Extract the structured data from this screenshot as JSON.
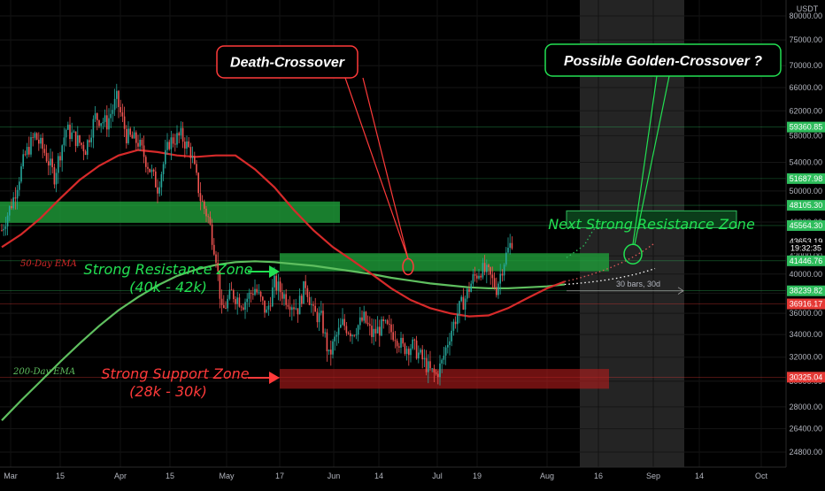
{
  "chart_data": {
    "type": "candlestick",
    "currency": "USDT",
    "x_ticks": [
      "Mar",
      "15",
      "Apr",
      "15",
      "May",
      "17",
      "Jun",
      "14",
      "Jul",
      "19",
      "Aug",
      "16",
      "Sep",
      "14",
      "Oct"
    ],
    "y_ticks": [
      "80000.00",
      "75000.00",
      "70000.00",
      "66000.00",
      "62000.00",
      "58000.00",
      "54000.00",
      "50000.00",
      "46000.00",
      "42000.00",
      "40000.00",
      "38000.00",
      "36000.00",
      "34000.00",
      "32000.00",
      "30000.00",
      "28000.00",
      "26400.00",
      "24800.00"
    ],
    "price_tags": [
      {
        "label": "59360.85",
        "value": 59360.85,
        "color": "#2ebd5c",
        "fill": true
      },
      {
        "label": "51687.98",
        "value": 51687.98,
        "color": "#2ebd5c",
        "fill": true
      },
      {
        "label": "48105.30",
        "value": 48105.3,
        "color": "#2ebd5c",
        "fill": true
      },
      {
        "label": "45564.30",
        "value": 45564.3,
        "color": "#2ebd5c",
        "fill": true
      },
      {
        "label": "43653.19",
        "value": 43653.19,
        "color": "#ffffff",
        "fill": false
      },
      {
        "label": "19:32:35",
        "value": 42900,
        "color": "#ffffff",
        "fill": false
      },
      {
        "label": "41446.76",
        "value": 41446.76,
        "color": "#2ebd5c",
        "fill": true
      },
      {
        "label": "38239.82",
        "value": 38239.82,
        "color": "#2ebd5c",
        "fill": true
      },
      {
        "label": "36916.17",
        "value": 36916.17,
        "color": "#e53935",
        "fill": true
      },
      {
        "label": "30325.04",
        "value": 30325.04,
        "color": "#e53935",
        "fill": true
      }
    ],
    "ema50": {
      "label": "50-Day EMA",
      "color": "#d62a2a",
      "points": [
        [
          0,
          43000
        ],
        [
          10,
          44500
        ],
        [
          20,
          46500
        ],
        [
          30,
          49000
        ],
        [
          40,
          51500
        ],
        [
          50,
          53500
        ],
        [
          60,
          55000
        ],
        [
          70,
          55800
        ],
        [
          80,
          55500
        ],
        [
          90,
          55000
        ],
        [
          100,
          54800
        ],
        [
          110,
          55000
        ],
        [
          120,
          55000
        ],
        [
          130,
          53000
        ],
        [
          140,
          50500
        ],
        [
          150,
          47500
        ],
        [
          160,
          45000
        ],
        [
          170,
          43000
        ],
        [
          180,
          41500
        ],
        [
          190,
          40000
        ],
        [
          200,
          38500
        ],
        [
          210,
          37300
        ],
        [
          220,
          36500
        ],
        [
          230,
          36000
        ],
        [
          240,
          35700
        ],
        [
          250,
          35800
        ],
        [
          260,
          36500
        ],
        [
          270,
          37500
        ],
        [
          280,
          38500
        ],
        [
          289,
          39200
        ]
      ]
    },
    "ema200": {
      "label": "200-Day EMA",
      "color": "#5fbf5f",
      "points": [
        [
          0,
          27000
        ],
        [
          10,
          28500
        ],
        [
          20,
          30000
        ],
        [
          30,
          31600
        ],
        [
          40,
          33200
        ],
        [
          50,
          34800
        ],
        [
          60,
          36300
        ],
        [
          70,
          37600
        ],
        [
          80,
          38800
        ],
        [
          90,
          39800
        ],
        [
          100,
          40500
        ],
        [
          110,
          41000
        ],
        [
          120,
          41300
        ],
        [
          130,
          41400
        ],
        [
          140,
          41300
        ],
        [
          150,
          41100
        ],
        [
          160,
          40900
        ],
        [
          170,
          40600
        ],
        [
          180,
          40300
        ],
        [
          190,
          40000
        ],
        [
          200,
          39600
        ],
        [
          210,
          39300
        ],
        [
          220,
          39000
        ],
        [
          230,
          38800
        ],
        [
          240,
          38600
        ],
        [
          250,
          38500
        ],
        [
          260,
          38500
        ],
        [
          270,
          38600
        ],
        [
          280,
          38700
        ],
        [
          289,
          38900
        ]
      ]
    },
    "anchors": [
      [
        0,
        45000
      ],
      [
        6,
        49000
      ],
      [
        12,
        55000
      ],
      [
        17,
        58000
      ],
      [
        22,
        55500
      ],
      [
        27,
        52000
      ],
      [
        33,
        59000
      ],
      [
        38,
        57500
      ],
      [
        43,
        56000
      ],
      [
        48,
        61000
      ],
      [
        54,
        60000
      ],
      [
        59,
        64000
      ],
      [
        64,
        58000
      ],
      [
        70,
        57000
      ],
      [
        76,
        53000
      ],
      [
        80,
        50500
      ],
      [
        86,
        57000
      ],
      [
        92,
        58000
      ],
      [
        97,
        55500
      ],
      [
        102,
        49000
      ],
      [
        106,
        46500
      ],
      [
        110,
        42000
      ],
      [
        113,
        36000
      ],
      [
        118,
        38000
      ],
      [
        124,
        37000
      ],
      [
        130,
        38500
      ],
      [
        136,
        36000
      ],
      [
        140,
        39000
      ],
      [
        146,
        37500
      ],
      [
        152,
        36500
      ],
      [
        156,
        39000
      ],
      [
        160,
        36000
      ],
      [
        164,
        35500
      ],
      [
        168,
        32000
      ],
      [
        171,
        33500
      ],
      [
        175,
        35000
      ],
      [
        180,
        34200
      ],
      [
        186,
        35500
      ],
      [
        190,
        34000
      ],
      [
        196,
        34800
      ],
      [
        202,
        34000
      ],
      [
        206,
        32800
      ],
      [
        211,
        33000
      ],
      [
        216,
        31800
      ],
      [
        220,
        30800
      ],
      [
        223,
        30500
      ],
      [
        226,
        31500
      ],
      [
        230,
        34000
      ],
      [
        235,
        36500
      ],
      [
        238,
        37500
      ],
      [
        242,
        39500
      ],
      [
        246,
        40500
      ],
      [
        250,
        40000
      ],
      [
        254,
        38500
      ],
      [
        258,
        41500
      ],
      [
        262,
        43800
      ]
    ],
    "annotations": {
      "death_cross": "Death-Crossover",
      "golden_cross": "Possible Golden-Crossover ?",
      "next_resistance": "Next Strong Resistance Zone",
      "resistance_zone": "Strong Resistance Zone",
      "resistance_range": "(40k - 42k)",
      "support_zone": "Strong Support Zone",
      "support_range": "(28k - 30k)",
      "bars_note": "30 bars, 30d"
    },
    "colors": {
      "up": "#26a69a",
      "down": "#ef5350",
      "green_zone": "#1f9d3a",
      "red_zone": "#b71c1c"
    }
  }
}
